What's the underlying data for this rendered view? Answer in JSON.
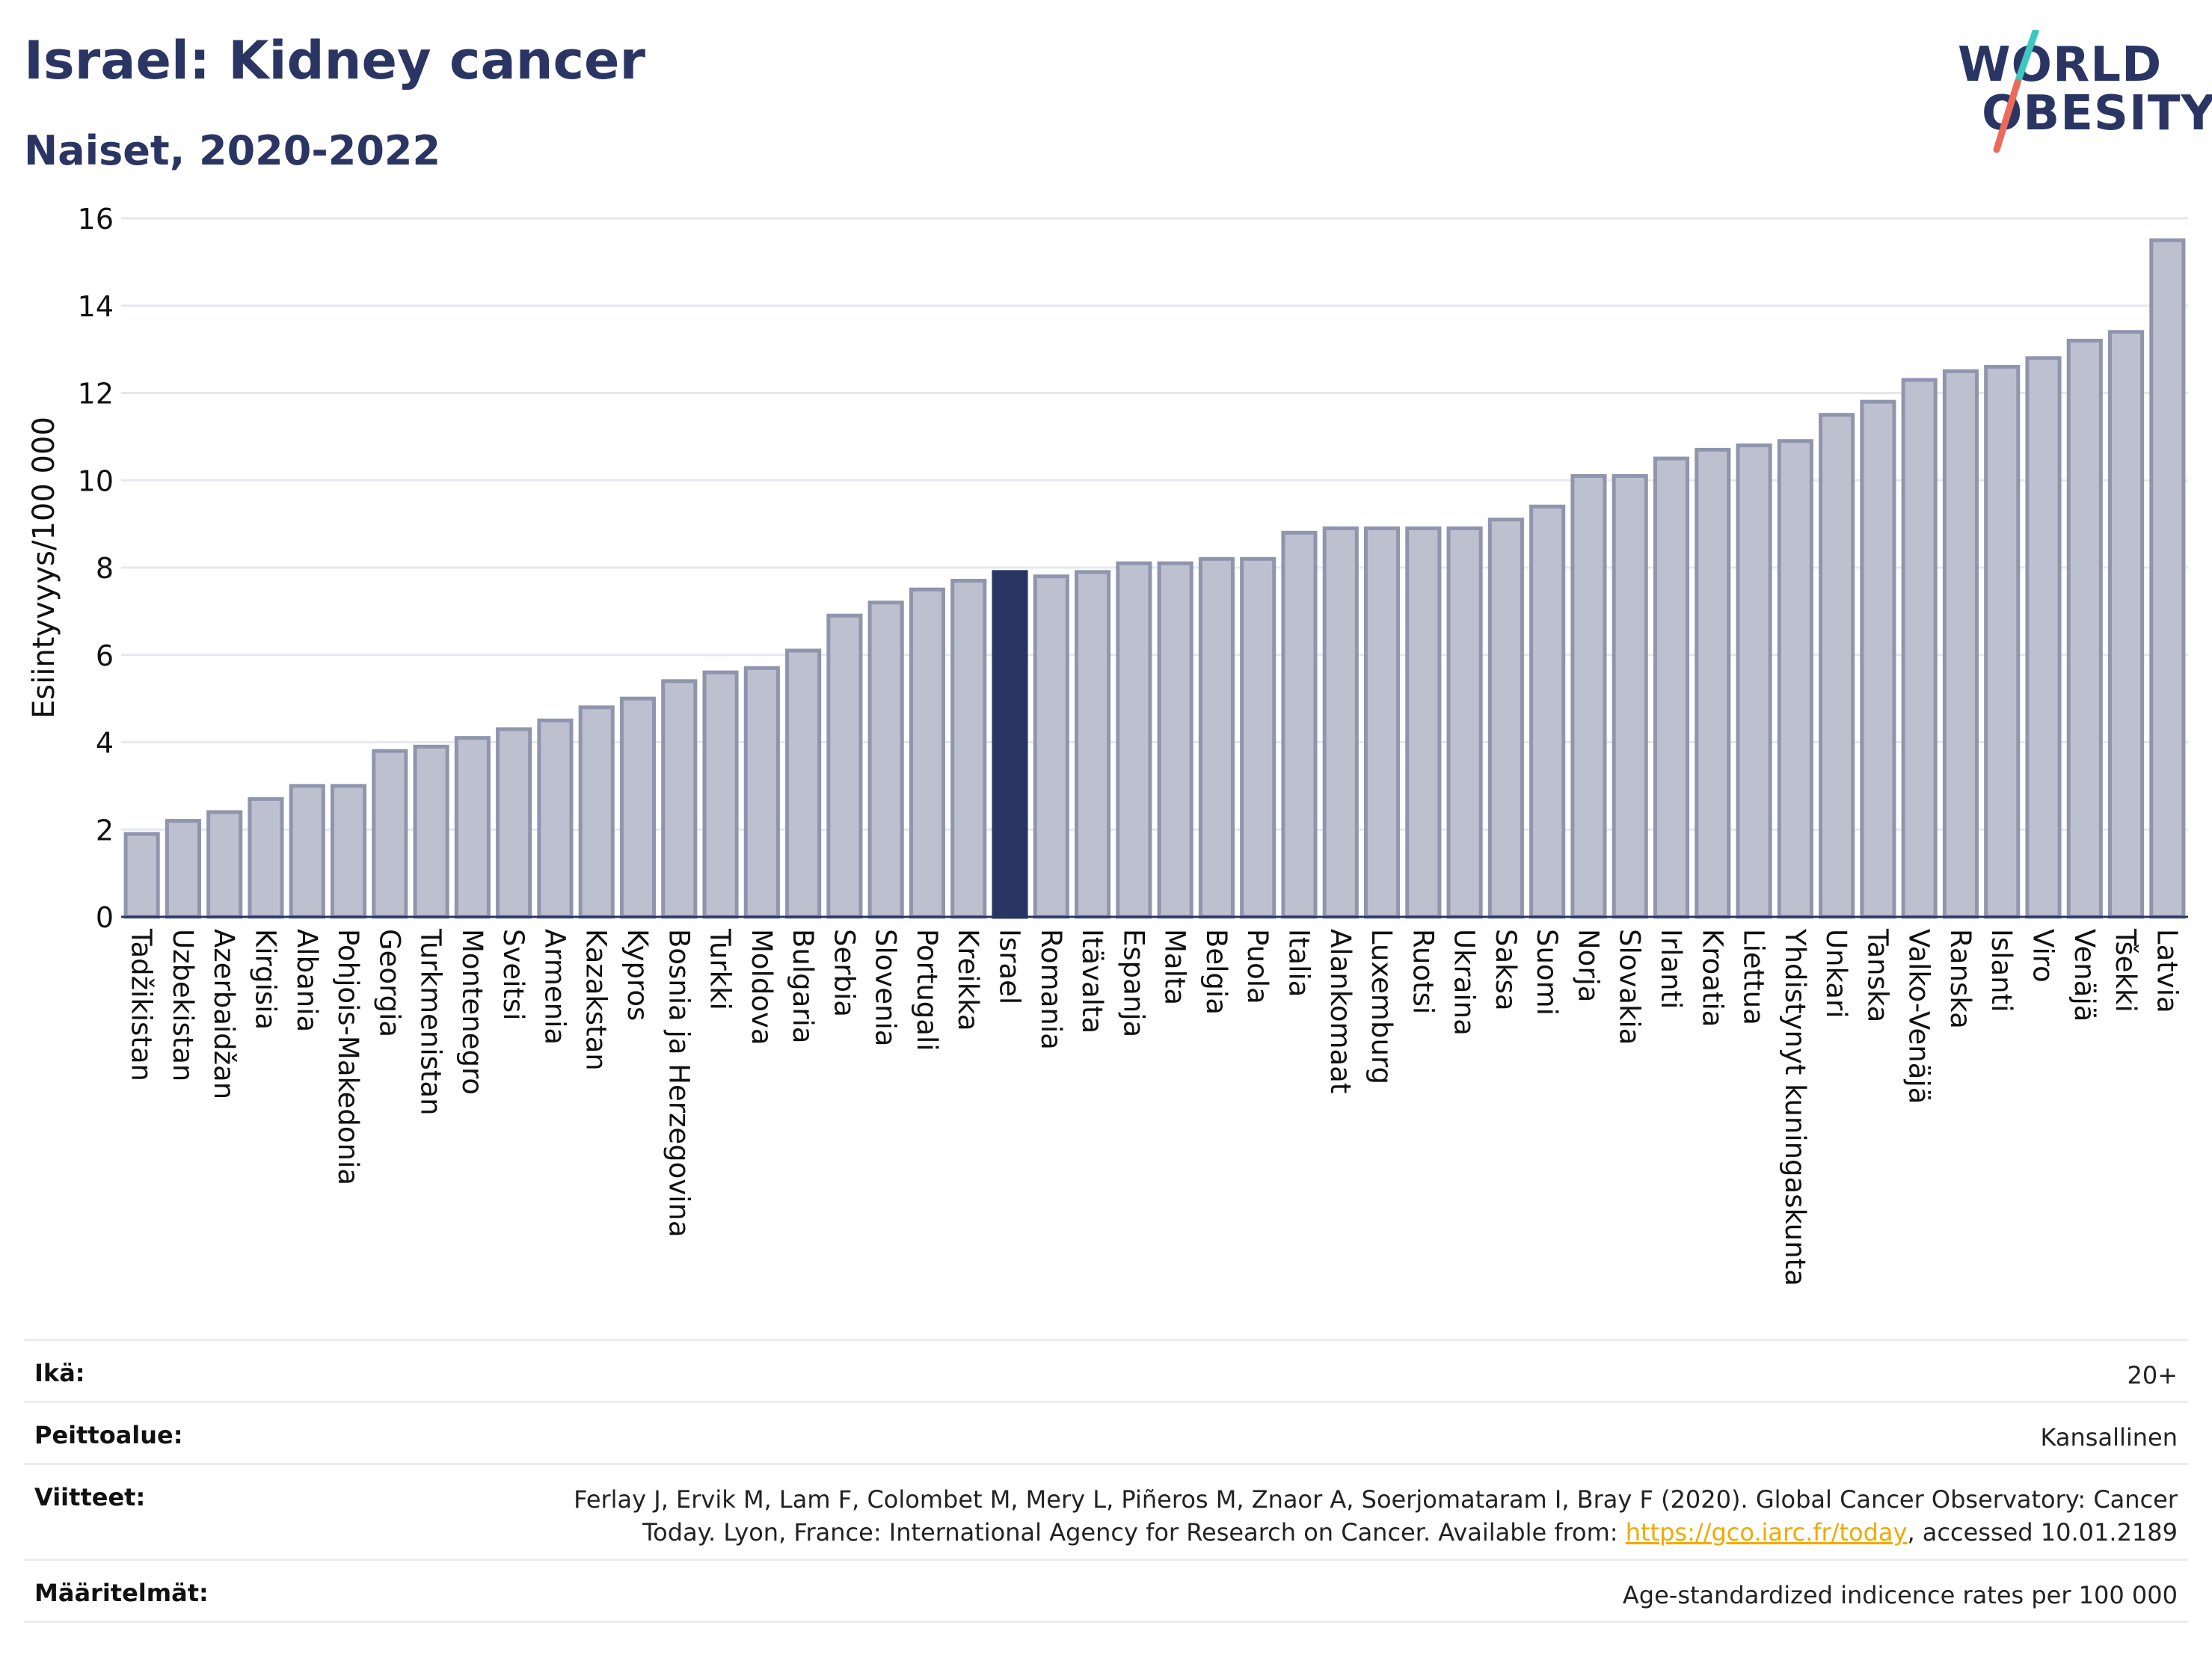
{
  "header": {
    "title": "Israel: Kidney cancer",
    "subtitle": "Naiset, 2020-2022"
  },
  "logo": {
    "line1": "WORLD",
    "line2": "OBESITY"
  },
  "colors": {
    "bar": "#bcc0cf",
    "bar_stroke": "#8f95ad",
    "highlight": "#2a3563",
    "title": "#2a3563",
    "grid": "#e6e8ee",
    "logo_slash_top": "#3ec7c0",
    "logo_slash_bottom": "#ea6b5b"
  },
  "chart_data": {
    "type": "bar",
    "ylabel": "Esiintyvyys/100 000",
    "ylim": [
      0,
      16
    ],
    "yticks": [
      0,
      2,
      4,
      6,
      8,
      10,
      12,
      14,
      16
    ],
    "grid": true,
    "highlight": "Israel",
    "categories": [
      "Tadžikistan",
      "Uzbekistan",
      "Azerbaidžan",
      "Kirgisia",
      "Albania",
      "Pohjois-Makedonia",
      "Georgia",
      "Turkmenistan",
      "Montenegro",
      "Sveitsi",
      "Armenia",
      "Kazakstan",
      "Kypros",
      "Bosnia ja Herzegovina",
      "Turkki",
      "Moldova",
      "Bulgaria",
      "Serbia",
      "Slovenia",
      "Portugali",
      "Kreikka",
      "Israel",
      "Romania",
      "Itävalta",
      "Espanja",
      "Malta",
      "Belgia",
      "Puola",
      "Italia",
      "Alankomaat",
      "Luxemburg",
      "Ruotsi",
      "Ukraina",
      "Saksa",
      "Suomi",
      "Norja",
      "Slovakia",
      "Irlanti",
      "Kroatia",
      "Liettua",
      "Yhdistynyt kuningaskunta",
      "Unkari",
      "Tanska",
      "Valko-Venäjä",
      "Ranska",
      "Islanti",
      "Viro",
      "Venäjä",
      "Tšekki",
      "Latvia"
    ],
    "values": [
      1.9,
      2.2,
      2.4,
      2.7,
      3.0,
      3.0,
      3.8,
      3.9,
      4.1,
      4.3,
      4.5,
      4.8,
      5.0,
      5.4,
      5.6,
      5.7,
      6.1,
      6.9,
      7.2,
      7.5,
      7.7,
      7.9,
      7.8,
      7.9,
      8.1,
      8.1,
      8.2,
      8.2,
      8.8,
      8.9,
      8.9,
      8.9,
      8.9,
      9.1,
      9.4,
      10.1,
      10.1,
      10.5,
      10.7,
      10.8,
      10.9,
      11.5,
      11.8,
      12.3,
      12.5,
      12.6,
      12.8,
      13.2,
      13.4,
      15.5
    ]
  },
  "meta": {
    "age_label": "Ikä:",
    "age_value": "20+",
    "coverage_label": "Peittoalue:",
    "coverage_value": "Kansallinen",
    "refs_label": "Viitteet:",
    "refs_line1": "Ferlay J, Ervik M, Lam F, Colombet M, Mery L, Piñeros M, Znaor A, Soerjomataram I, Bray F (2020). Global Cancer Observatory: Cancer",
    "refs_line2_pre": "Today. Lyon, France: International Agency for Research on Cancer. Available from: ",
    "refs_link": "https://gco.iarc.fr/today",
    "refs_line2_post": ", accessed 10.01.2189",
    "defs_label": "Määritelmät:",
    "defs_value": "Age-standardized indicence rates per 100 000"
  }
}
